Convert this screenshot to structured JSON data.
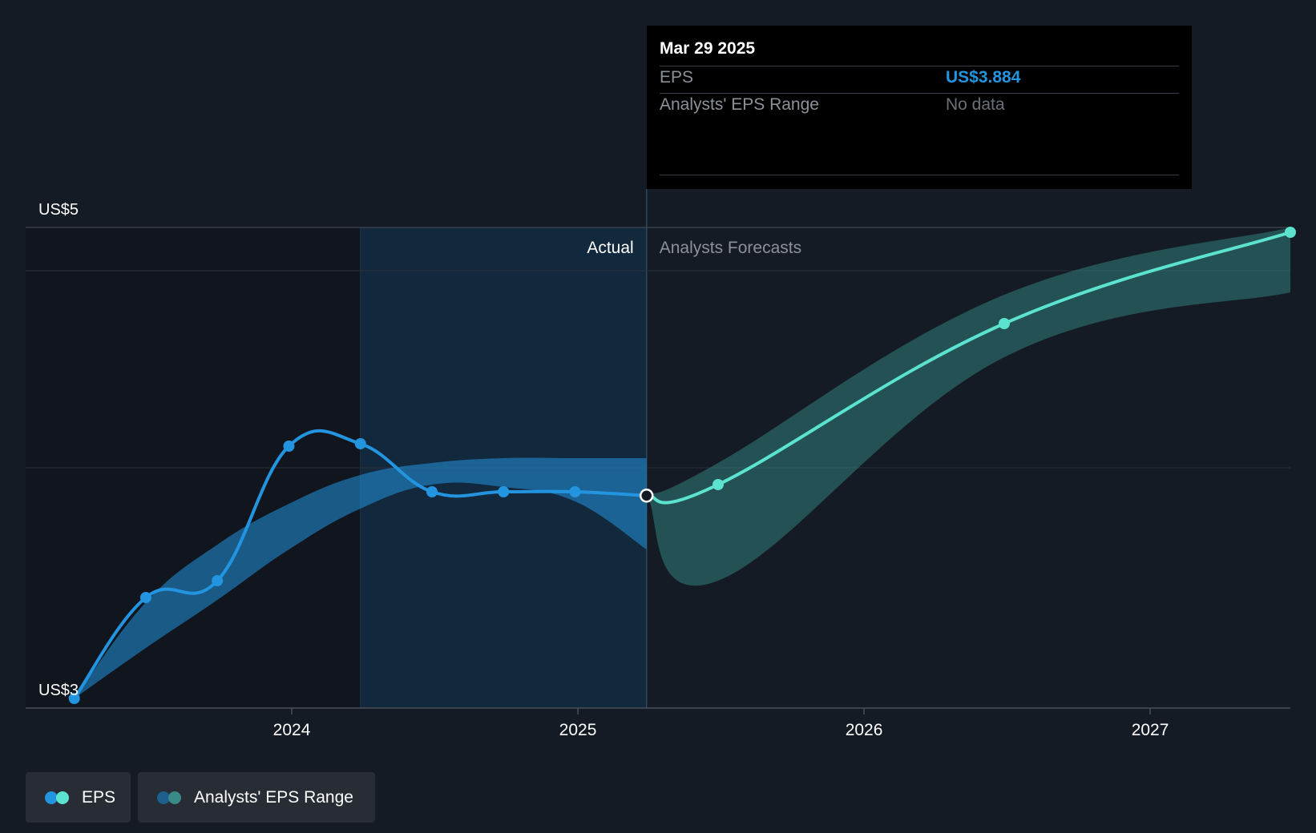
{
  "chart_data": {
    "type": "line",
    "y_axis": {
      "label_top": "US$5",
      "label_bottom": "US$3",
      "min": 3,
      "max": 5,
      "gridlines": [
        5,
        4,
        3
      ]
    },
    "x_axis": {
      "ticks": [
        "2024",
        "2025",
        "2026",
        "2027"
      ],
      "tick_values": [
        2024.0,
        2025.0,
        2026.0,
        2027.0
      ],
      "range": [
        2023.07,
        2027.49
      ]
    },
    "regions": {
      "actual_label": "Actual",
      "forecast_label": "Analysts Forecasts",
      "highlight_start": 2024.24,
      "divider": 2025.24
    },
    "series": [
      {
        "name": "EPS",
        "color": "#2394df",
        "points": [
          {
            "x": 2023.24,
            "y": 3.04
          },
          {
            "x": 2023.49,
            "y": 3.46
          },
          {
            "x": 2023.74,
            "y": 3.53
          },
          {
            "x": 2023.99,
            "y": 4.09
          },
          {
            "x": 2024.24,
            "y": 4.1
          },
          {
            "x": 2024.49,
            "y": 3.9
          },
          {
            "x": 2024.74,
            "y": 3.9
          },
          {
            "x": 2024.99,
            "y": 3.9
          },
          {
            "x": 2025.24,
            "y": 3.884
          }
        ]
      },
      {
        "name": "EPS",
        "color": "#5be3cf",
        "points": [
          {
            "x": 2025.24,
            "y": 3.884
          },
          {
            "x": 2025.49,
            "y": 3.93
          },
          {
            "x": 2026.49,
            "y": 4.6
          },
          {
            "x": 2027.49,
            "y": 4.98
          }
        ]
      }
    ],
    "ranges": [
      {
        "name": "Analysts' EPS Range",
        "color": "#2394df",
        "x": [
          2023.24,
          2023.49,
          2023.74,
          2023.99,
          2024.24,
          2024.49,
          2024.74,
          2024.99,
          2025.24
        ],
        "upper": [
          3.04,
          3.44,
          3.68,
          3.85,
          3.97,
          4.02,
          4.04,
          4.04,
          4.04
        ],
        "lower": [
          3.04,
          3.25,
          3.45,
          3.66,
          3.83,
          3.93,
          3.92,
          3.86,
          3.66
        ]
      },
      {
        "name": "Analysts' EPS Range",
        "color": "#2f7d7b",
        "x": [
          2025.24,
          2025.49,
          2026.49,
          2027.49
        ],
        "upper": [
          3.884,
          4.02,
          4.72,
          5.0
        ],
        "lower": [
          3.884,
          3.53,
          4.46,
          4.73
        ]
      }
    ],
    "legend": [
      {
        "label": "EPS"
      },
      {
        "label": "Analysts' EPS Range"
      }
    ],
    "legend_position": "bottom-left"
  },
  "tooltip": {
    "date": "Mar 29 2025",
    "eps_label": "EPS",
    "eps_value": "US$3.884",
    "range_label": "Analysts' EPS Range",
    "range_value": "No data"
  },
  "colors": {
    "background": "#151b24",
    "eps_actual": "#2394df",
    "eps_forecast": "#5be3cf",
    "range_forecast": "#2f7d7b"
  }
}
